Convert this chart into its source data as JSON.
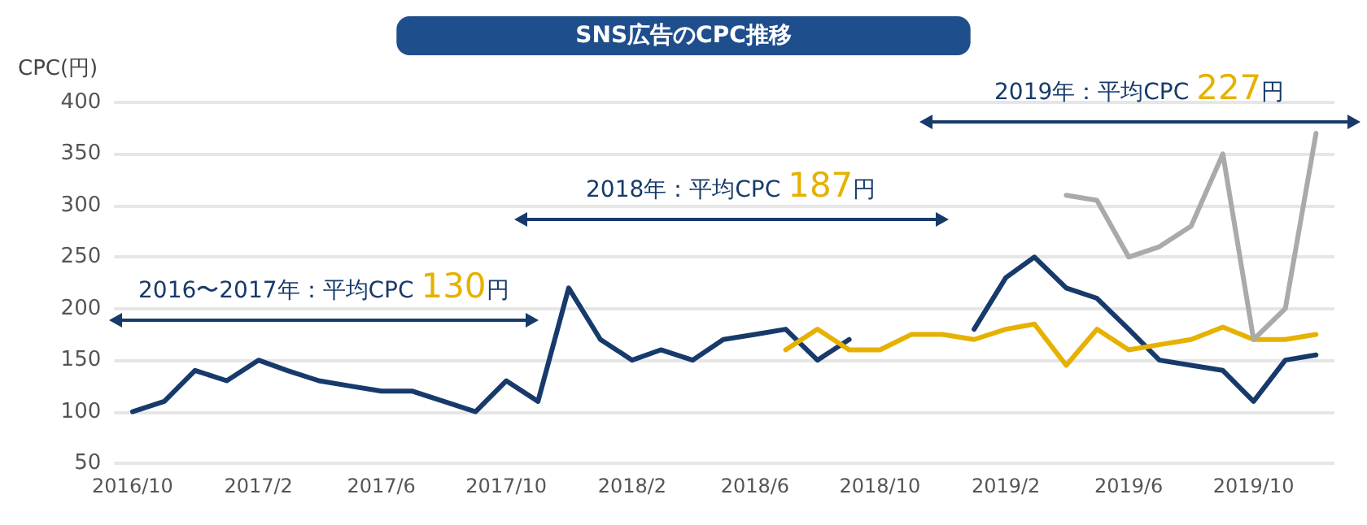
{
  "chart_data": {
    "type": "line",
    "title": "SNS広告のCPC推移",
    "ylabel": "CPC(円)",
    "x": [
      "2016-10",
      "2016-11",
      "2016-12",
      "2017-01",
      "2017-02",
      "2017-03",
      "2017-04",
      "2017-05",
      "2017-06",
      "2017-07",
      "2017-08",
      "2017-09",
      "2017-10",
      "2017-11",
      "2017-12",
      "2018-01",
      "2018-02",
      "2018-03",
      "2018-04",
      "2018-05",
      "2018-06",
      "2018-07",
      "2018-08",
      "2018-09",
      "2018-10",
      "2018-11",
      "2018-12",
      "2019-01",
      "2019-02",
      "2019-03",
      "2019-04",
      "2019-05",
      "2019-06",
      "2019-07",
      "2019-08",
      "2019-09",
      "2019-10",
      "2019-11",
      "2019-12"
    ],
    "series": [
      {
        "color": "#173a6b",
        "values": [
          100,
          110,
          140,
          130,
          150,
          140,
          130,
          125,
          120,
          120,
          110,
          100,
          130,
          110,
          220,
          170,
          150,
          160,
          150,
          170,
          175,
          180,
          150,
          170,
          null,
          null,
          null,
          180,
          230,
          250,
          220,
          210,
          180,
          150,
          145,
          140,
          110,
          150,
          155
        ]
      },
      {
        "color": "#e6b100",
        "values": [
          null,
          null,
          null,
          null,
          null,
          null,
          null,
          null,
          null,
          null,
          null,
          null,
          null,
          null,
          null,
          null,
          null,
          null,
          null,
          null,
          null,
          160,
          180,
          160,
          160,
          175,
          175,
          170,
          180,
          185,
          145,
          180,
          160,
          165,
          170,
          182,
          170,
          170,
          175
        ]
      },
      {
        "color": "#aaaaaa",
        "values": [
          null,
          null,
          null,
          null,
          null,
          null,
          null,
          null,
          null,
          null,
          null,
          null,
          null,
          null,
          null,
          null,
          null,
          null,
          null,
          null,
          null,
          null,
          null,
          null,
          null,
          null,
          null,
          null,
          null,
          null,
          310,
          305,
          250,
          260,
          280,
          350,
          170,
          200,
          370
        ]
      }
    ],
    "xlim": [
      "2016-09-13",
      "2019-12-19"
    ],
    "xticks": [
      {
        "value": "2016-10",
        "label": "2016/10"
      },
      {
        "value": "2017-02",
        "label": "2017/2"
      },
      {
        "value": "2017-06",
        "label": "2017/6"
      },
      {
        "value": "2017-10",
        "label": "2017/10"
      },
      {
        "value": "2018-02",
        "label": "2018/2"
      },
      {
        "value": "2018-06",
        "label": "2018/6"
      },
      {
        "value": "2018-10",
        "label": "2018/10"
      },
      {
        "value": "2019-02",
        "label": "2019/2"
      },
      {
        "value": "2019-06",
        "label": "2019/6"
      },
      {
        "value": "2019-10",
        "label": "2019/10"
      }
    ],
    "ylim": [
      50,
      400
    ],
    "yticks": [
      50,
      100,
      150,
      200,
      250,
      300,
      350,
      400
    ],
    "grid": "y",
    "marker": "none",
    "line_style": "solid",
    "annotations": [
      "2016〜2017年：平均CPC 130円",
      "2018年：平均CPC 187円",
      "2019年：平均CPC 227円"
    ]
  }
}
